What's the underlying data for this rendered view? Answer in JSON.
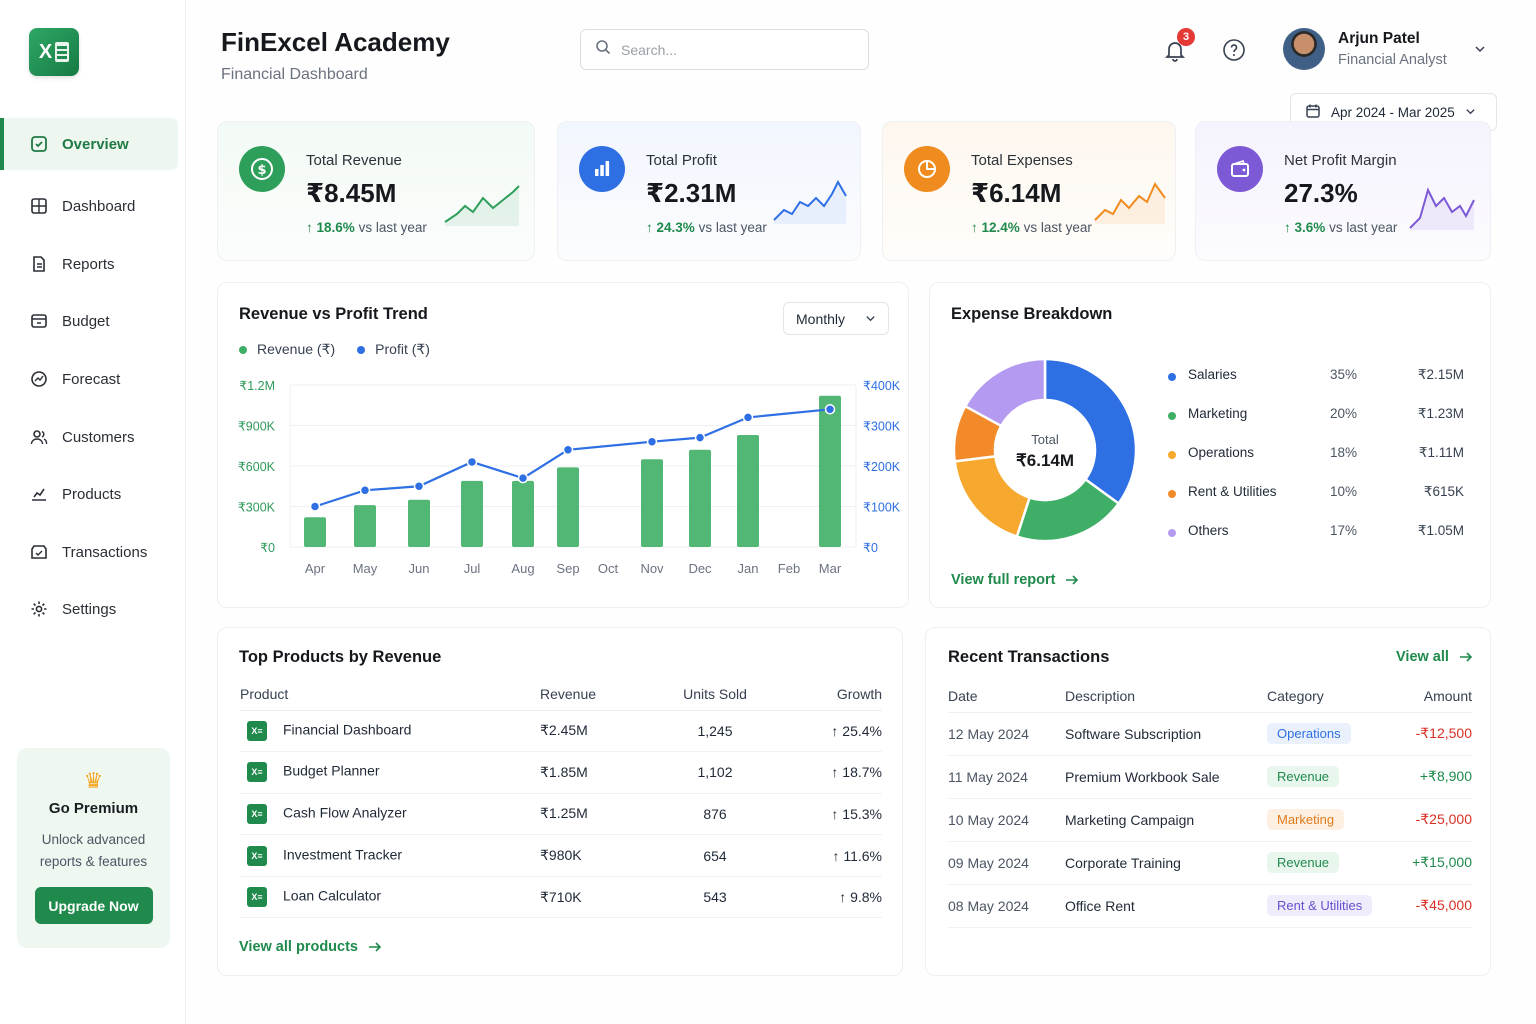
{
  "app": {
    "title": "FinExcel Academy",
    "subtitle": "Financial Dashboard",
    "logo_letter": "X"
  },
  "search": {
    "placeholder": "Search..."
  },
  "notifications": {
    "count": "3"
  },
  "user": {
    "name": "Arjun Patel",
    "role": "Financial Analyst"
  },
  "date_range": "Apr 2024 - Mar 2025",
  "sidebar": {
    "items": [
      {
        "label": "Overview",
        "icon": "overview-icon"
      },
      {
        "label": "Dashboard",
        "icon": "dashboard-icon"
      },
      {
        "label": "Reports",
        "icon": "reports-icon"
      },
      {
        "label": "Budget",
        "icon": "budget-icon"
      },
      {
        "label": "Forecast",
        "icon": "forecast-icon"
      },
      {
        "label": "Customers",
        "icon": "customers-icon"
      },
      {
        "label": "Products",
        "icon": "products-icon"
      },
      {
        "label": "Transactions",
        "icon": "transactions-icon"
      },
      {
        "label": "Settings",
        "icon": "settings-icon"
      }
    ],
    "active": "Overview"
  },
  "premium": {
    "title": "Go Premium",
    "description": "Unlock advanced reports & features",
    "button": "Upgrade Now"
  },
  "kpis": [
    {
      "label": "Total Revenue",
      "value": "₹8.45M",
      "change": "18.6%",
      "change_suffix": "vs last year",
      "color": "#2e9e5b"
    },
    {
      "label": "Total Profit",
      "value": "₹2.31M",
      "change": "24.3%",
      "change_suffix": "vs last year",
      "color": "#2f6fe4"
    },
    {
      "label": "Total Expenses",
      "value": "₹6.14M",
      "change": "12.4%",
      "change_suffix": "vs last year",
      "color": "#f08c1f"
    },
    {
      "label": "Net Profit Margin",
      "value": "27.3%",
      "change": "3.6%",
      "change_suffix": "vs last year",
      "color": "#7c5ad6"
    }
  ],
  "trend": {
    "title": "Revenue vs Profit Trend",
    "period": "Monthly",
    "legend": {
      "revenue": "Revenue (₹)",
      "profit": "Profit (₹)"
    }
  },
  "chart_data": [
    {
      "type": "bar",
      "title": "Revenue vs Profit Trend",
      "categories": [
        "Apr",
        "May",
        "Jun",
        "Jul",
        "Aug",
        "Sep",
        "Oct",
        "Nov",
        "Dec",
        "Jan",
        "Feb",
        "Mar"
      ],
      "series": [
        {
          "name": "Revenue (₹)",
          "type": "bar",
          "axis": "left",
          "values": [
            220000,
            310000,
            350000,
            490000,
            490000,
            590000,
            0,
            650000,
            720000,
            830000,
            0,
            1120000
          ],
          "color": "#3fae66"
        },
        {
          "name": "Profit (₹)",
          "type": "line",
          "axis": "right",
          "values": [
            100000,
            140000,
            150000,
            210000,
            170000,
            240000,
            0,
            260000,
            270000,
            320000,
            0,
            340000
          ],
          "color": "#2f6fe4"
        }
      ],
      "left_axis": {
        "ticks": [
          "₹0",
          "₹300K",
          "₹600K",
          "₹900K",
          "₹1.2M"
        ],
        "ylim": [
          0,
          1200000
        ]
      },
      "right_axis": {
        "ticks": [
          "₹0",
          "₹100K",
          "₹200K",
          "₹300K",
          "₹400K"
        ],
        "ylim": [
          0,
          400000
        ]
      },
      "grid": true,
      "legend": "top-left"
    },
    {
      "type": "pie",
      "title": "Expense Breakdown",
      "center_label": "Total",
      "center_value": "₹6.14M",
      "slices": [
        {
          "name": "Salaries",
          "percent": 35,
          "amount": "₹2.15M",
          "pct_label": "35%",
          "color": "#2f6fe4"
        },
        {
          "name": "Marketing",
          "percent": 20,
          "amount": "₹1.23M",
          "pct_label": "20%",
          "color": "#3fae66"
        },
        {
          "name": "Operations",
          "percent": 18,
          "amount": "₹1.11M",
          "pct_label": "18%",
          "color": "#f7a82f"
        },
        {
          "name": "Rent & Utilities",
          "percent": 10,
          "amount": "₹615K",
          "pct_label": "10%",
          "color": "#f38a2a"
        },
        {
          "name": "Others",
          "percent": 17,
          "amount": "₹1.05M",
          "pct_label": "17%",
          "color": "#b49af0"
        }
      ]
    }
  ],
  "expense": {
    "title": "Expense Breakdown",
    "link": "View full report"
  },
  "products": {
    "title": "Top Products by Revenue",
    "headers": [
      "Product",
      "Revenue",
      "Units Sold",
      "Growth"
    ],
    "rows": [
      {
        "name": "Financial Dashboard",
        "revenue": "₹2.45M",
        "units": "1,245",
        "growth": "25.4%"
      },
      {
        "name": "Budget Planner",
        "revenue": "₹1.85M",
        "units": "1,102",
        "growth": "18.7%"
      },
      {
        "name": "Cash Flow Analyzer",
        "revenue": "₹1.25M",
        "units": "876",
        "growth": "15.3%"
      },
      {
        "name": "Investment Tracker",
        "revenue": "₹980K",
        "units": "654",
        "growth": "11.6%"
      },
      {
        "name": "Loan Calculator",
        "revenue": "₹710K",
        "units": "543",
        "growth": "9.8%"
      }
    ],
    "link": "View all products"
  },
  "transactions": {
    "title": "Recent Transactions",
    "link": "View all",
    "headers": [
      "Date",
      "Description",
      "Category",
      "Amount"
    ],
    "rows": [
      {
        "date": "12 May 2024",
        "desc": "Software Subscription",
        "category": "Operations",
        "amount": "-₹12,500",
        "chip_bg": "#eaf1fd",
        "chip_fg": "#2f6fe4",
        "amount_color": "#d93025"
      },
      {
        "date": "11 May 2024",
        "desc": "Premium Workbook Sale",
        "category": "Revenue",
        "amount": "+₹8,900",
        "chip_bg": "#e9f6ee",
        "chip_fg": "#1f8a4c",
        "amount_color": "#1f8a4c"
      },
      {
        "date": "10 May 2024",
        "desc": "Marketing Campaign",
        "category": "Marketing",
        "amount": "-₹25,000",
        "chip_bg": "#fdf0e3",
        "chip_fg": "#e07b1a",
        "amount_color": "#d93025"
      },
      {
        "date": "09 May 2024",
        "desc": "Corporate Training",
        "category": "Revenue",
        "amount": "+₹15,000",
        "chip_bg": "#e9f6ee",
        "chip_fg": "#1f8a4c",
        "amount_color": "#1f8a4c"
      },
      {
        "date": "08 May 2024",
        "desc": "Office Rent",
        "category": "Rent & Utilities",
        "amount": "-₹45,000",
        "chip_bg": "#efecfb",
        "chip_fg": "#6a4fd0",
        "amount_color": "#d93025"
      }
    ]
  }
}
